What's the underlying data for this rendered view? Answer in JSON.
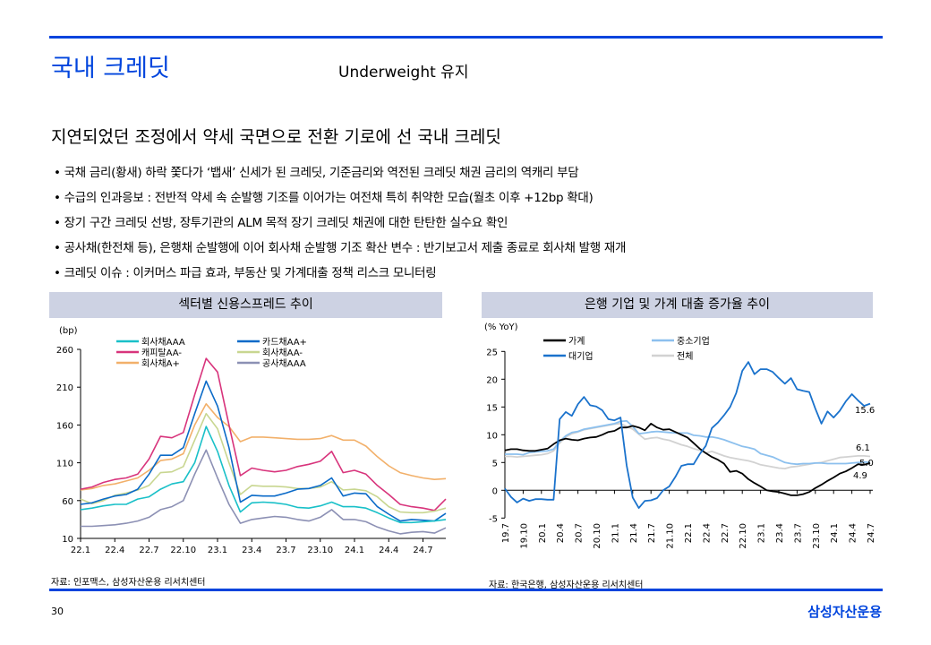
{
  "header": {
    "title": "국내 크레딧",
    "subtitle": "Underweight 유지"
  },
  "heading": "지연되었던 조정에서 약세 국면으로 전환 기로에 선 국내 크레딧",
  "bullets": [
    "• 국채 금리(황새) 하락 쫓다가 ‘뱁새’ 신세가 된 크레딧, 기준금리와 역전된 크레딧 채권 금리의 역캐리 부담",
    "• 수급의 인과응보 : 전반적 약세 속 순발행 기조를 이어가는 여전채 특히 취약한 모습(월초 이후 +12bp 확대)",
    "• 장기 구간 크레딧 선방, 장투기관의 ALM 목적 장기 크레딧 채권에 대한 탄탄한 실수요 확인",
    "• 공사채(한전채 등), 은행채 순발행에 이어 회사채 순발행 기조 확산 변수 : 반기보고서 제출 종료로 회사채 발행 재개",
    "• 크레딧 이슈 : 이커머스 파급 효과, 부동산 및 가계대출 정책 리스크 모니터링"
  ],
  "footer": {
    "page": "30",
    "logo": "삼성자산운용"
  },
  "colors": {
    "accent": "#0044dd",
    "chart_header_bg": "#cdd2e3"
  },
  "chart_data": [
    {
      "type": "line",
      "title": "섹터별 신용스프레드 추이",
      "unit": "(bp)",
      "source": "자료: 인포맥스, 삼성자산운용 리서치센터",
      "ylim": [
        10,
        260
      ],
      "yticks": [
        10,
        60,
        110,
        160,
        210,
        260
      ],
      "x_start": "2022-01",
      "x_frequency": "monthly",
      "xticks": [
        "22.1",
        "22.4",
        "22.7",
        "22.10",
        "23.1",
        "23.4",
        "23.7",
        "23.10",
        "24.1",
        "24.4",
        "24.7"
      ],
      "grid": false,
      "legend": "top-left",
      "series": [
        {
          "name": "회사채AAA",
          "color": "#19c0c8",
          "values": [
            48,
            50,
            53,
            55,
            55,
            62,
            65,
            75,
            82,
            85,
            110,
            158,
            125,
            80,
            45,
            57,
            58,
            57,
            55,
            51,
            50,
            53,
            58,
            52,
            52,
            50,
            44,
            37,
            31,
            31,
            32,
            33,
            35
          ]
        },
        {
          "name": "카드채AA+",
          "color": "#0a6ac8",
          "values": [
            55,
            57,
            62,
            66,
            68,
            75,
            95,
            120,
            120,
            130,
            175,
            218,
            185,
            130,
            58,
            67,
            66,
            66,
            70,
            75,
            76,
            80,
            90,
            66,
            70,
            69,
            52,
            42,
            33,
            35,
            34,
            33,
            43
          ]
        },
        {
          "name": "캐피탈AA-",
          "color": "#d8347c",
          "values": [
            75,
            78,
            84,
            88,
            90,
            95,
            115,
            145,
            143,
            150,
            200,
            248,
            230,
            160,
            93,
            103,
            100,
            98,
            100,
            105,
            108,
            112,
            125,
            97,
            100,
            95,
            80,
            68,
            55,
            52,
            50,
            47,
            62
          ]
        },
        {
          "name": "회사채AA-",
          "color": "#c8d690",
          "values": [
            62,
            56,
            60,
            67,
            70,
            74,
            80,
            97,
            98,
            105,
            140,
            175,
            155,
            110,
            68,
            80,
            79,
            79,
            78,
            76,
            76,
            78,
            85,
            74,
            75,
            73,
            65,
            52,
            45,
            44,
            44,
            46,
            50
          ]
        },
        {
          "name": "회사채A+",
          "color": "#f2b06a",
          "values": [
            74,
            76,
            80,
            82,
            86,
            90,
            100,
            113,
            115,
            122,
            160,
            188,
            170,
            158,
            138,
            144,
            144,
            143,
            142,
            141,
            141,
            142,
            146,
            140,
            140,
            132,
            118,
            106,
            97,
            93,
            90,
            88,
            89
          ]
        },
        {
          "name": "공사채AAA",
          "color": "#8c90b4",
          "values": [
            26,
            26,
            27,
            28,
            30,
            33,
            38,
            48,
            52,
            60,
            95,
            127,
            90,
            55,
            30,
            35,
            37,
            39,
            38,
            35,
            33,
            38,
            48,
            35,
            35,
            32,
            25,
            20,
            16,
            18,
            19,
            17,
            24
          ]
        }
      ]
    },
    {
      "type": "line",
      "title": "은행 기업 및 가계 대출 증가율 추이",
      "unit": "(% YoY)",
      "source": "자료: 한국은행, 삼성자산운용 리서치센터",
      "ylim": [
        -5,
        25
      ],
      "yticks": [
        -5,
        0,
        5,
        10,
        15,
        20,
        25
      ],
      "x_start": "2019-07",
      "x_frequency": "monthly",
      "xticks": [
        "19.7",
        "19.10",
        "20.1",
        "20.4",
        "20.7",
        "20.10",
        "21.1",
        "21.4",
        "21.7",
        "21.10",
        "22.1",
        "22.4",
        "22.7",
        "22.10",
        "23.1",
        "23.4",
        "23.7",
        "23.10",
        "24.1",
        "24.4",
        "24.7"
      ],
      "grid": false,
      "legend": "top",
      "end_labels": [
        "15.6",
        "6.1",
        "5.0",
        "4.9"
      ],
      "series": [
        {
          "name": "가계",
          "color": "#000000",
          "values": [
            7.2,
            7.4,
            7.4,
            7.2,
            7.1,
            7.1,
            7.3,
            7.5,
            8.3,
            9.0,
            9.3,
            9.1,
            9.0,
            9.3,
            9.5,
            9.6,
            10.0,
            10.5,
            10.7,
            11.3,
            11.3,
            11.6,
            11.3,
            10.8,
            12.0,
            11.3,
            10.9,
            11.0,
            10.5,
            10.0,
            9.5,
            8.5,
            7.5,
            6.7,
            6.0,
            5.5,
            4.8,
            3.3,
            3.5,
            3.0,
            2.0,
            1.3,
            0.7,
            0.0,
            -0.2,
            -0.3,
            -0.6,
            -0.9,
            -0.9,
            -0.7,
            -0.3,
            0.4,
            1.0,
            1.7,
            2.3,
            3.0,
            3.4,
            4.0,
            4.7,
            4.6,
            4.9
          ]
        },
        {
          "name": "대기업",
          "color": "#1a72cc",
          "values": [
            0.3,
            -1.2,
            -2.2,
            -1.5,
            -1.9,
            -1.6,
            -1.6,
            -1.7,
            -1.7,
            12.8,
            14.1,
            13.4,
            15.5,
            16.8,
            15.3,
            15.1,
            14.4,
            12.8,
            12.6,
            13.1,
            4.5,
            -1.3,
            -3.2,
            -1.9,
            -1.8,
            -1.4,
            0.0,
            0.7,
            2.4,
            4.4,
            4.7,
            4.7,
            6.5,
            8.0,
            11.2,
            12.2,
            13.5,
            15.0,
            17.5,
            21.5,
            23.1,
            20.9,
            21.8,
            21.8,
            21.3,
            20.2,
            19.2,
            20.2,
            18.2,
            17.9,
            17.7,
            14.7,
            12.0,
            14.2,
            13.1,
            14.3,
            16.0,
            17.3,
            16.2,
            15.2,
            15.6
          ]
        },
        {
          "name": "중소기업",
          "color": "#8cc0ee",
          "values": [
            6.5,
            6.5,
            6.5,
            6.4,
            6.8,
            6.9,
            7.0,
            7.1,
            7.4,
            8.8,
            9.8,
            10.4,
            10.6,
            11.0,
            11.2,
            11.4,
            11.6,
            11.8,
            12.0,
            12.4,
            12.5,
            11.5,
            10.2,
            10.3,
            10.5,
            10.6,
            10.5,
            10.4,
            10.3,
            10.3,
            10.3,
            9.9,
            9.8,
            9.6,
            9.6,
            9.4,
            9.1,
            8.7,
            8.3,
            7.9,
            7.7,
            7.4,
            6.6,
            6.3,
            6.0,
            5.5,
            5.0,
            4.8,
            4.7,
            4.8,
            4.8,
            4.9,
            4.9,
            4.8,
            4.8,
            4.8,
            4.8,
            4.9,
            5.0,
            5.1,
            5.0
          ]
        },
        {
          "name": "전체",
          "color": "#d2d2d2",
          "values": [
            6.1,
            6.1,
            6.0,
            6.1,
            6.2,
            6.3,
            6.4,
            6.6,
            7.1,
            8.5,
            9.6,
            10.2,
            10.5,
            10.9,
            11.1,
            11.3,
            11.5,
            11.7,
            11.9,
            12.0,
            11.5,
            11.0,
            10.1,
            9.2,
            9.4,
            9.5,
            9.2,
            9.0,
            8.6,
            8.2,
            7.9,
            7.5,
            7.2,
            6.7,
            7.0,
            6.6,
            6.2,
            5.9,
            5.7,
            5.5,
            5.3,
            5.0,
            4.6,
            4.4,
            4.2,
            4.0,
            3.9,
            4.2,
            4.3,
            4.5,
            4.7,
            4.9,
            5.0,
            5.3,
            5.6,
            5.9,
            6.0,
            6.1,
            6.2,
            6.2,
            6.1
          ]
        }
      ]
    }
  ]
}
